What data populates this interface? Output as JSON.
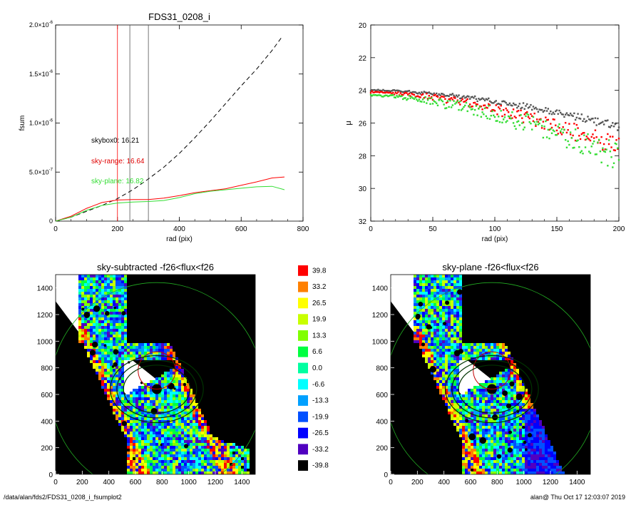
{
  "chart_data": [
    {
      "type": "line",
      "title": "FDS31_0208_i",
      "xlabel": "rad (pix)",
      "ylabel": "fsum",
      "xlim": [
        0,
        800
      ],
      "ylim": [
        0,
        2e-06
      ],
      "xticks": [
        "0",
        "200",
        "400",
        "600",
        "800"
      ],
      "yticks": [
        {
          "m": "0",
          "e": ""
        },
        {
          "m": "5.0×10",
          "e": "-7"
        },
        {
          "m": "1.0×10",
          "e": "-6"
        },
        {
          "m": "1.5×10",
          "e": "-6"
        },
        {
          "m": "2.0×10",
          "e": "-6"
        }
      ],
      "vlines": [
        {
          "x": 200,
          "color": "#ff0000"
        },
        {
          "x": 240,
          "color": "#555555"
        },
        {
          "x": 300,
          "color": "#555555"
        }
      ],
      "annotations": [
        {
          "text": "skybox0: 16.21",
          "color": "#000000"
        },
        {
          "text": "sky-range: 16.64",
          "color": "#e00000"
        },
        {
          "text": "sky-plane: 16.82",
          "color": "#33dd33"
        }
      ],
      "series": [
        {
          "style": "dashed",
          "color": "#000000",
          "x": [
            0,
            50,
            100,
            150,
            200,
            250,
            300,
            350,
            400,
            450,
            500,
            550,
            600,
            650,
            700,
            730
          ],
          "y": [
            0,
            4e-08,
            1e-07,
            1.6e-07,
            2.3e-07,
            3.2e-07,
            4.3e-07,
            5.5e-07,
            6.9e-07,
            8.5e-07,
            1.02e-06,
            1.2e-06,
            1.38e-06,
            1.55e-06,
            1.74e-06,
            1.87e-06
          ]
        },
        {
          "style": "solid",
          "color": "#ff0000",
          "x": [
            0,
            50,
            100,
            150,
            200,
            250,
            300,
            350,
            400,
            450,
            500,
            550,
            600,
            650,
            700,
            740
          ],
          "y": [
            0,
            5e-08,
            1.3e-07,
            1.9e-07,
            2.15e-07,
            2.2e-07,
            2.2e-07,
            2.35e-07,
            2.6e-07,
            2.9e-07,
            3.1e-07,
            3.3e-07,
            3.65e-07,
            4e-07,
            4.4e-07,
            4.5e-07
          ]
        },
        {
          "style": "solid",
          "color": "#33dd33",
          "x": [
            0,
            50,
            100,
            150,
            200,
            250,
            300,
            350,
            400,
            450,
            500,
            550,
            600,
            650,
            700,
            740
          ],
          "y": [
            0,
            4e-08,
            1.1e-07,
            1.6e-07,
            1.85e-07,
            1.95e-07,
            2e-07,
            2.1e-07,
            2.4e-07,
            2.8e-07,
            3.05e-07,
            3.2e-07,
            3.35e-07,
            3.5e-07,
            3.55e-07,
            3.2e-07
          ]
        }
      ]
    },
    {
      "type": "scatter",
      "title": "",
      "xlabel": "rad (pix)",
      "ylabel": "μ",
      "xlim": [
        0,
        200
      ],
      "ylim": [
        32,
        20
      ],
      "xticks": [
        "0",
        "50",
        "100",
        "150",
        "200"
      ],
      "yticks": [
        "20",
        "22",
        "24",
        "26",
        "28",
        "30",
        "32"
      ],
      "series": [
        {
          "color": "#555555",
          "from": 24.0,
          "to": 26.2,
          "noise": 0.25
        },
        {
          "color": "#ff0000",
          "from": 24.1,
          "to": 27.5,
          "noise": 0.6
        },
        {
          "color": "#33dd33",
          "from": 24.3,
          "to": 28.1,
          "noise": 0.9
        }
      ]
    },
    {
      "type": "heatmap",
      "title": "sky-subtracted -f26<flux<f26",
      "xlim": [
        0,
        1500
      ],
      "ylim": [
        0,
        1500
      ],
      "xticks": [
        "0",
        "200",
        "400",
        "600",
        "800",
        "1000",
        "1200",
        "1400"
      ],
      "yticks": [
        "0",
        "200",
        "400",
        "600",
        "800",
        "1000",
        "1200",
        "1400"
      ],
      "variant": "subtracted"
    },
    {
      "type": "heatmap",
      "title": "sky-plane -f26<flux<f26",
      "xlim": [
        0,
        1500
      ],
      "ylim": [
        0,
        1500
      ],
      "xticks": [
        "0",
        "200",
        "400",
        "600",
        "800",
        "1000",
        "1200",
        "1400"
      ],
      "yticks": [
        "0",
        "200",
        "400",
        "600",
        "800",
        "1000",
        "1200",
        "1400"
      ],
      "variant": "plane"
    }
  ],
  "colorbar": {
    "labels": [
      "39.8",
      "33.2",
      "26.5",
      "19.9",
      "13.3",
      "6.6",
      "0.0",
      "-6.6",
      "-13.3",
      "-19.9",
      "-26.5",
      "-33.2",
      "-39.8"
    ],
    "colors": [
      "#ff0000",
      "#ff8000",
      "#ffff00",
      "#c8ff00",
      "#80ff00",
      "#00ff40",
      "#00ffa0",
      "#00ffff",
      "#00a0ff",
      "#0050ff",
      "#0000ff",
      "#5000c0",
      "#000000"
    ]
  },
  "footer": {
    "left": "/data/alan/fds2/FDS31_0208_i_fsumplot2",
    "right": "alan@  Thu Oct 17 12:03:07 2019"
  }
}
